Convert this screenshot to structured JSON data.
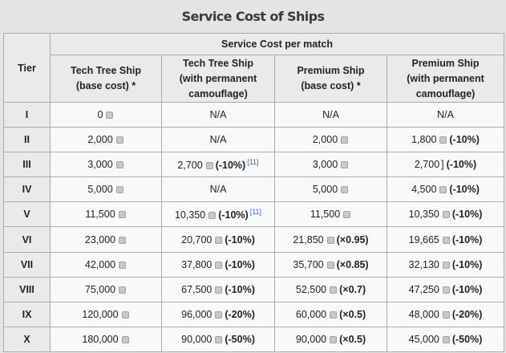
{
  "title": "Service Cost of Ships",
  "header": {
    "tier": "Tier",
    "group": "Service Cost per match",
    "columns": [
      {
        "line1": "Tech Tree Ship",
        "line2": "(base cost) *",
        "line3": ""
      },
      {
        "line1": "Tech Tree Ship",
        "line2": "(with permanent",
        "line3": "camouflage)"
      },
      {
        "line1": "Premium Ship",
        "line2": "(base cost) *",
        "line3": ""
      },
      {
        "line1": "Premium Ship",
        "line2": "(with permanent",
        "line3": "camouflage)"
      }
    ]
  },
  "coin_icon": "credits-icon",
  "rows": [
    {
      "tier": "I",
      "c1": {
        "value": "0",
        "mod": ""
      },
      "c2": {
        "value": "N/A",
        "mod": "",
        "ref": ""
      },
      "c3": {
        "value": "N/A",
        "mod": ""
      },
      "c4": {
        "value": "N/A",
        "mod": ""
      }
    },
    {
      "tier": "II",
      "c1": {
        "value": "2,000",
        "mod": ""
      },
      "c2": {
        "value": "N/A",
        "mod": "",
        "ref": ""
      },
      "c3": {
        "value": "2,000",
        "mod": ""
      },
      "c4": {
        "value": "1,800",
        "mod": "(-10%)"
      }
    },
    {
      "tier": "III",
      "c1": {
        "value": "3,000",
        "mod": ""
      },
      "c2": {
        "value": "2,700",
        "mod": "(-10%)",
        "ref": "[11]"
      },
      "c3": {
        "value": "3,000",
        "mod": ""
      },
      "c4": {
        "value": "2,700",
        "mod": "(-10%)",
        "bar": "]"
      }
    },
    {
      "tier": "IV",
      "c1": {
        "value": "5,000",
        "mod": ""
      },
      "c2": {
        "value": "N/A",
        "mod": "",
        "ref": ""
      },
      "c3": {
        "value": "5,000",
        "mod": ""
      },
      "c4": {
        "value": "4,500",
        "mod": "(-10%)"
      }
    },
    {
      "tier": "V",
      "c1": {
        "value": "11,500",
        "mod": ""
      },
      "c2": {
        "value": "10,350",
        "mod": "(-10%)",
        "ref": "[11]"
      },
      "c3": {
        "value": "11,500",
        "mod": ""
      },
      "c4": {
        "value": "10,350",
        "mod": "(-10%)"
      }
    },
    {
      "tier": "VI",
      "c1": {
        "value": "23,000",
        "mod": ""
      },
      "c2": {
        "value": "20,700",
        "mod": "(-10%)",
        "ref": ""
      },
      "c3": {
        "value": "21,850",
        "mod": "(×0.95)"
      },
      "c4": {
        "value": "19,665",
        "mod": "(-10%)"
      }
    },
    {
      "tier": "VII",
      "c1": {
        "value": "42,000",
        "mod": ""
      },
      "c2": {
        "value": "37,800",
        "mod": "(-10%)",
        "ref": ""
      },
      "c3": {
        "value": "35,700",
        "mod": "(×0.85)"
      },
      "c4": {
        "value": "32,130",
        "mod": "(-10%)"
      }
    },
    {
      "tier": "VIII",
      "c1": {
        "value": "75,000",
        "mod": ""
      },
      "c2": {
        "value": "67,500",
        "mod": "(-10%)",
        "ref": ""
      },
      "c3": {
        "value": "52,500",
        "mod": "(×0.7)"
      },
      "c4": {
        "value": "47,250",
        "mod": "(-10%)"
      }
    },
    {
      "tier": "IX",
      "c1": {
        "value": "120,000",
        "mod": ""
      },
      "c2": {
        "value": "96,000",
        "mod": "(-20%)",
        "ref": ""
      },
      "c3": {
        "value": "60,000",
        "mod": "(×0.5)"
      },
      "c4": {
        "value": "48,000",
        "mod": "(-20%)"
      }
    },
    {
      "tier": "X",
      "c1": {
        "value": "180,000",
        "mod": ""
      },
      "c2": {
        "value": "90,000",
        "mod": "(-50%)",
        "ref": ""
      },
      "c3": {
        "value": "90,000",
        "mod": "(×0.5)"
      },
      "c4": {
        "value": "45,000",
        "mod": "(-50%)"
      }
    }
  ]
}
